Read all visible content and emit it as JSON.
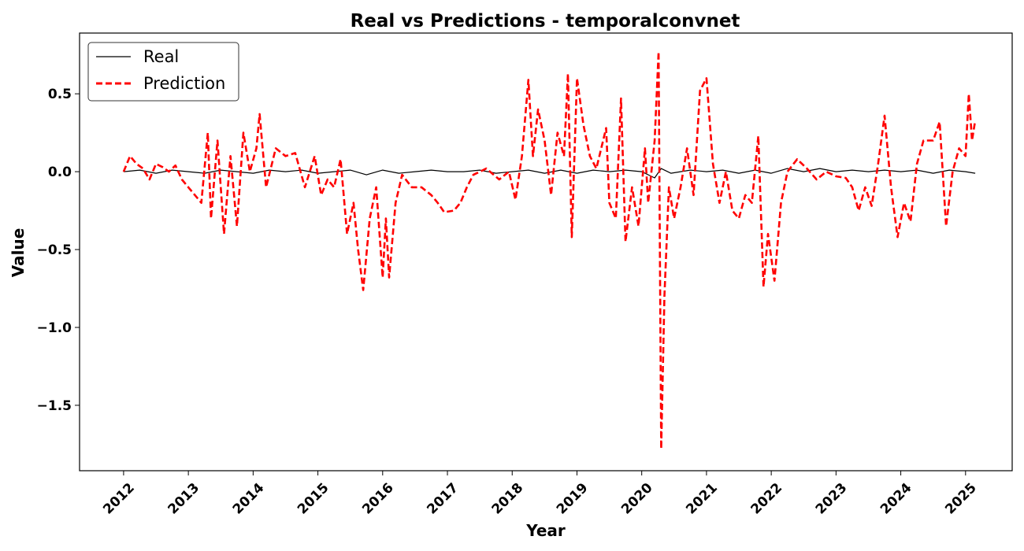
{
  "chart_data": {
    "type": "line",
    "title": "Real vs Predictions - temporalconvnet",
    "xlabel": "Year",
    "ylabel": "Value",
    "xlim": [
      2011.32,
      2025.72
    ],
    "ylim": [
      -1.92,
      0.89
    ],
    "x_ticks": [
      "2012",
      "2013",
      "2014",
      "2015",
      "2016",
      "2017",
      "2018",
      "2019",
      "2020",
      "2021",
      "2022",
      "2023",
      "2024",
      "2025"
    ],
    "y_ticks": [
      0.5,
      0.0,
      -0.5,
      -1.0,
      -1.5
    ],
    "y_tick_labels": [
      "0.5",
      "0.0",
      "−0.5",
      "−1.0",
      "−1.5"
    ],
    "legend_position": "upper-left",
    "colors": {
      "real": "#000000",
      "prediction": "#ff0000"
    },
    "series": [
      {
        "name": "Real",
        "style": "solid",
        "values": [
          [
            2012.0,
            0.0
          ],
          [
            2012.25,
            0.01
          ],
          [
            2012.5,
            -0.01
          ],
          [
            2012.75,
            0.01
          ],
          [
            2013.0,
            0.0
          ],
          [
            2013.25,
            -0.01
          ],
          [
            2013.5,
            0.01
          ],
          [
            2013.75,
            0.0
          ],
          [
            2014.0,
            -0.01
          ],
          [
            2014.25,
            0.01
          ],
          [
            2014.5,
            0.0
          ],
          [
            2014.75,
            0.01
          ],
          [
            2015.0,
            -0.01
          ],
          [
            2015.25,
            0.0
          ],
          [
            2015.5,
            0.01
          ],
          [
            2015.75,
            -0.02
          ],
          [
            2016.0,
            0.01
          ],
          [
            2016.25,
            -0.01
          ],
          [
            2016.5,
            0.0
          ],
          [
            2016.75,
            0.01
          ],
          [
            2017.0,
            0.0
          ],
          [
            2017.25,
            0.0
          ],
          [
            2017.5,
            0.01
          ],
          [
            2017.75,
            -0.01
          ],
          [
            2018.0,
            0.0
          ],
          [
            2018.25,
            0.01
          ],
          [
            2018.5,
            -0.01
          ],
          [
            2018.75,
            0.01
          ],
          [
            2019.0,
            -0.01
          ],
          [
            2019.25,
            0.01
          ],
          [
            2019.5,
            0.0
          ],
          [
            2019.75,
            0.01
          ],
          [
            2020.0,
            0.0
          ],
          [
            2020.2,
            -0.04
          ],
          [
            2020.3,
            0.02
          ],
          [
            2020.45,
            -0.01
          ],
          [
            2020.75,
            0.01
          ],
          [
            2021.0,
            0.0
          ],
          [
            2021.25,
            0.01
          ],
          [
            2021.5,
            -0.01
          ],
          [
            2021.75,
            0.01
          ],
          [
            2022.0,
            -0.01
          ],
          [
            2022.25,
            0.02
          ],
          [
            2022.5,
            0.0
          ],
          [
            2022.75,
            0.02
          ],
          [
            2023.0,
            0.0
          ],
          [
            2023.25,
            0.01
          ],
          [
            2023.5,
            0.0
          ],
          [
            2023.75,
            0.01
          ],
          [
            2024.0,
            0.0
          ],
          [
            2024.25,
            0.01
          ],
          [
            2024.5,
            -0.01
          ],
          [
            2024.75,
            0.01
          ],
          [
            2025.0,
            0.0
          ],
          [
            2025.15,
            -0.01
          ]
        ]
      },
      {
        "name": "Prediction",
        "style": "dashed",
        "values": [
          [
            2012.0,
            0.0
          ],
          [
            2012.1,
            0.1
          ],
          [
            2012.2,
            0.05
          ],
          [
            2012.3,
            0.02
          ],
          [
            2012.4,
            -0.05
          ],
          [
            2012.5,
            0.05
          ],
          [
            2012.6,
            0.03
          ],
          [
            2012.7,
            0.0
          ],
          [
            2012.8,
            0.04
          ],
          [
            2012.9,
            -0.05
          ],
          [
            2013.0,
            -0.1
          ],
          [
            2013.1,
            -0.15
          ],
          [
            2013.2,
            -0.2
          ],
          [
            2013.3,
            0.25
          ],
          [
            2013.35,
            -0.3
          ],
          [
            2013.45,
            0.2
          ],
          [
            2013.55,
            -0.4
          ],
          [
            2013.65,
            0.1
          ],
          [
            2013.75,
            -0.35
          ],
          [
            2013.85,
            0.25
          ],
          [
            2013.95,
            0.0
          ],
          [
            2014.05,
            0.15
          ],
          [
            2014.1,
            0.37
          ],
          [
            2014.2,
            -0.1
          ],
          [
            2014.35,
            0.15
          ],
          [
            2014.5,
            0.1
          ],
          [
            2014.65,
            0.12
          ],
          [
            2014.8,
            -0.1
          ],
          [
            2014.95,
            0.1
          ],
          [
            2015.05,
            -0.15
          ],
          [
            2015.15,
            -0.05
          ],
          [
            2015.25,
            -0.1
          ],
          [
            2015.35,
            0.08
          ],
          [
            2015.45,
            -0.4
          ],
          [
            2015.55,
            -0.2
          ],
          [
            2015.62,
            -0.5
          ],
          [
            2015.7,
            -0.76
          ],
          [
            2015.8,
            -0.3
          ],
          [
            2015.9,
            -0.1
          ],
          [
            2016.0,
            -0.68
          ],
          [
            2016.05,
            -0.3
          ],
          [
            2016.1,
            -0.68
          ],
          [
            2016.2,
            -0.2
          ],
          [
            2016.3,
            -0.02
          ],
          [
            2016.45,
            -0.1
          ],
          [
            2016.6,
            -0.1
          ],
          [
            2016.75,
            -0.15
          ],
          [
            2016.85,
            -0.2
          ],
          [
            2016.95,
            -0.26
          ],
          [
            2017.1,
            -0.25
          ],
          [
            2017.2,
            -0.2
          ],
          [
            2017.3,
            -0.1
          ],
          [
            2017.4,
            -0.02
          ],
          [
            2017.6,
            0.02
          ],
          [
            2017.8,
            -0.05
          ],
          [
            2017.95,
            0.0
          ],
          [
            2018.05,
            -0.18
          ],
          [
            2018.15,
            0.1
          ],
          [
            2018.25,
            0.59
          ],
          [
            2018.32,
            0.1
          ],
          [
            2018.4,
            0.4
          ],
          [
            2018.5,
            0.2
          ],
          [
            2018.6,
            -0.15
          ],
          [
            2018.7,
            0.25
          ],
          [
            2018.8,
            0.1
          ],
          [
            2018.86,
            0.63
          ],
          [
            2018.92,
            -0.42
          ],
          [
            2019.0,
            0.6
          ],
          [
            2019.1,
            0.3
          ],
          [
            2019.2,
            0.1
          ],
          [
            2019.3,
            0.02
          ],
          [
            2019.45,
            0.28
          ],
          [
            2019.5,
            -0.2
          ],
          [
            2019.6,
            -0.3
          ],
          [
            2019.68,
            0.47
          ],
          [
            2019.75,
            -0.45
          ],
          [
            2019.85,
            -0.1
          ],
          [
            2019.95,
            -0.35
          ],
          [
            2020.05,
            0.15
          ],
          [
            2020.1,
            -0.2
          ],
          [
            2020.2,
            0.2
          ],
          [
            2020.26,
            0.77
          ],
          [
            2020.3,
            -1.78
          ],
          [
            2020.35,
            -0.8
          ],
          [
            2020.42,
            -0.1
          ],
          [
            2020.5,
            -0.3
          ],
          [
            2020.6,
            -0.1
          ],
          [
            2020.7,
            0.15
          ],
          [
            2020.8,
            -0.15
          ],
          [
            2020.9,
            0.52
          ],
          [
            2021.0,
            0.6
          ],
          [
            2021.1,
            0.05
          ],
          [
            2021.2,
            -0.2
          ],
          [
            2021.3,
            0.0
          ],
          [
            2021.4,
            -0.25
          ],
          [
            2021.5,
            -0.3
          ],
          [
            2021.6,
            -0.15
          ],
          [
            2021.7,
            -0.2
          ],
          [
            2021.8,
            0.23
          ],
          [
            2021.88,
            -0.74
          ],
          [
            2021.95,
            -0.4
          ],
          [
            2022.05,
            -0.7
          ],
          [
            2022.15,
            -0.2
          ],
          [
            2022.25,
            0.0
          ],
          [
            2022.4,
            0.08
          ],
          [
            2022.55,
            0.02
          ],
          [
            2022.7,
            -0.05
          ],
          [
            2022.85,
            0.0
          ],
          [
            2023.0,
            -0.03
          ],
          [
            2023.15,
            -0.04
          ],
          [
            2023.25,
            -0.1
          ],
          [
            2023.35,
            -0.25
          ],
          [
            2023.45,
            -0.1
          ],
          [
            2023.55,
            -0.22
          ],
          [
            2023.65,
            0.05
          ],
          [
            2023.75,
            0.36
          ],
          [
            2023.85,
            -0.1
          ],
          [
            2023.95,
            -0.42
          ],
          [
            2024.05,
            -0.2
          ],
          [
            2024.15,
            -0.32
          ],
          [
            2024.25,
            0.05
          ],
          [
            2024.35,
            0.2
          ],
          [
            2024.5,
            0.2
          ],
          [
            2024.6,
            0.32
          ],
          [
            2024.7,
            -0.35
          ],
          [
            2024.8,
            0.0
          ],
          [
            2024.9,
            0.15
          ],
          [
            2025.0,
            0.1
          ],
          [
            2025.05,
            0.5
          ],
          [
            2025.1,
            0.2
          ],
          [
            2025.15,
            0.33
          ]
        ]
      }
    ]
  }
}
